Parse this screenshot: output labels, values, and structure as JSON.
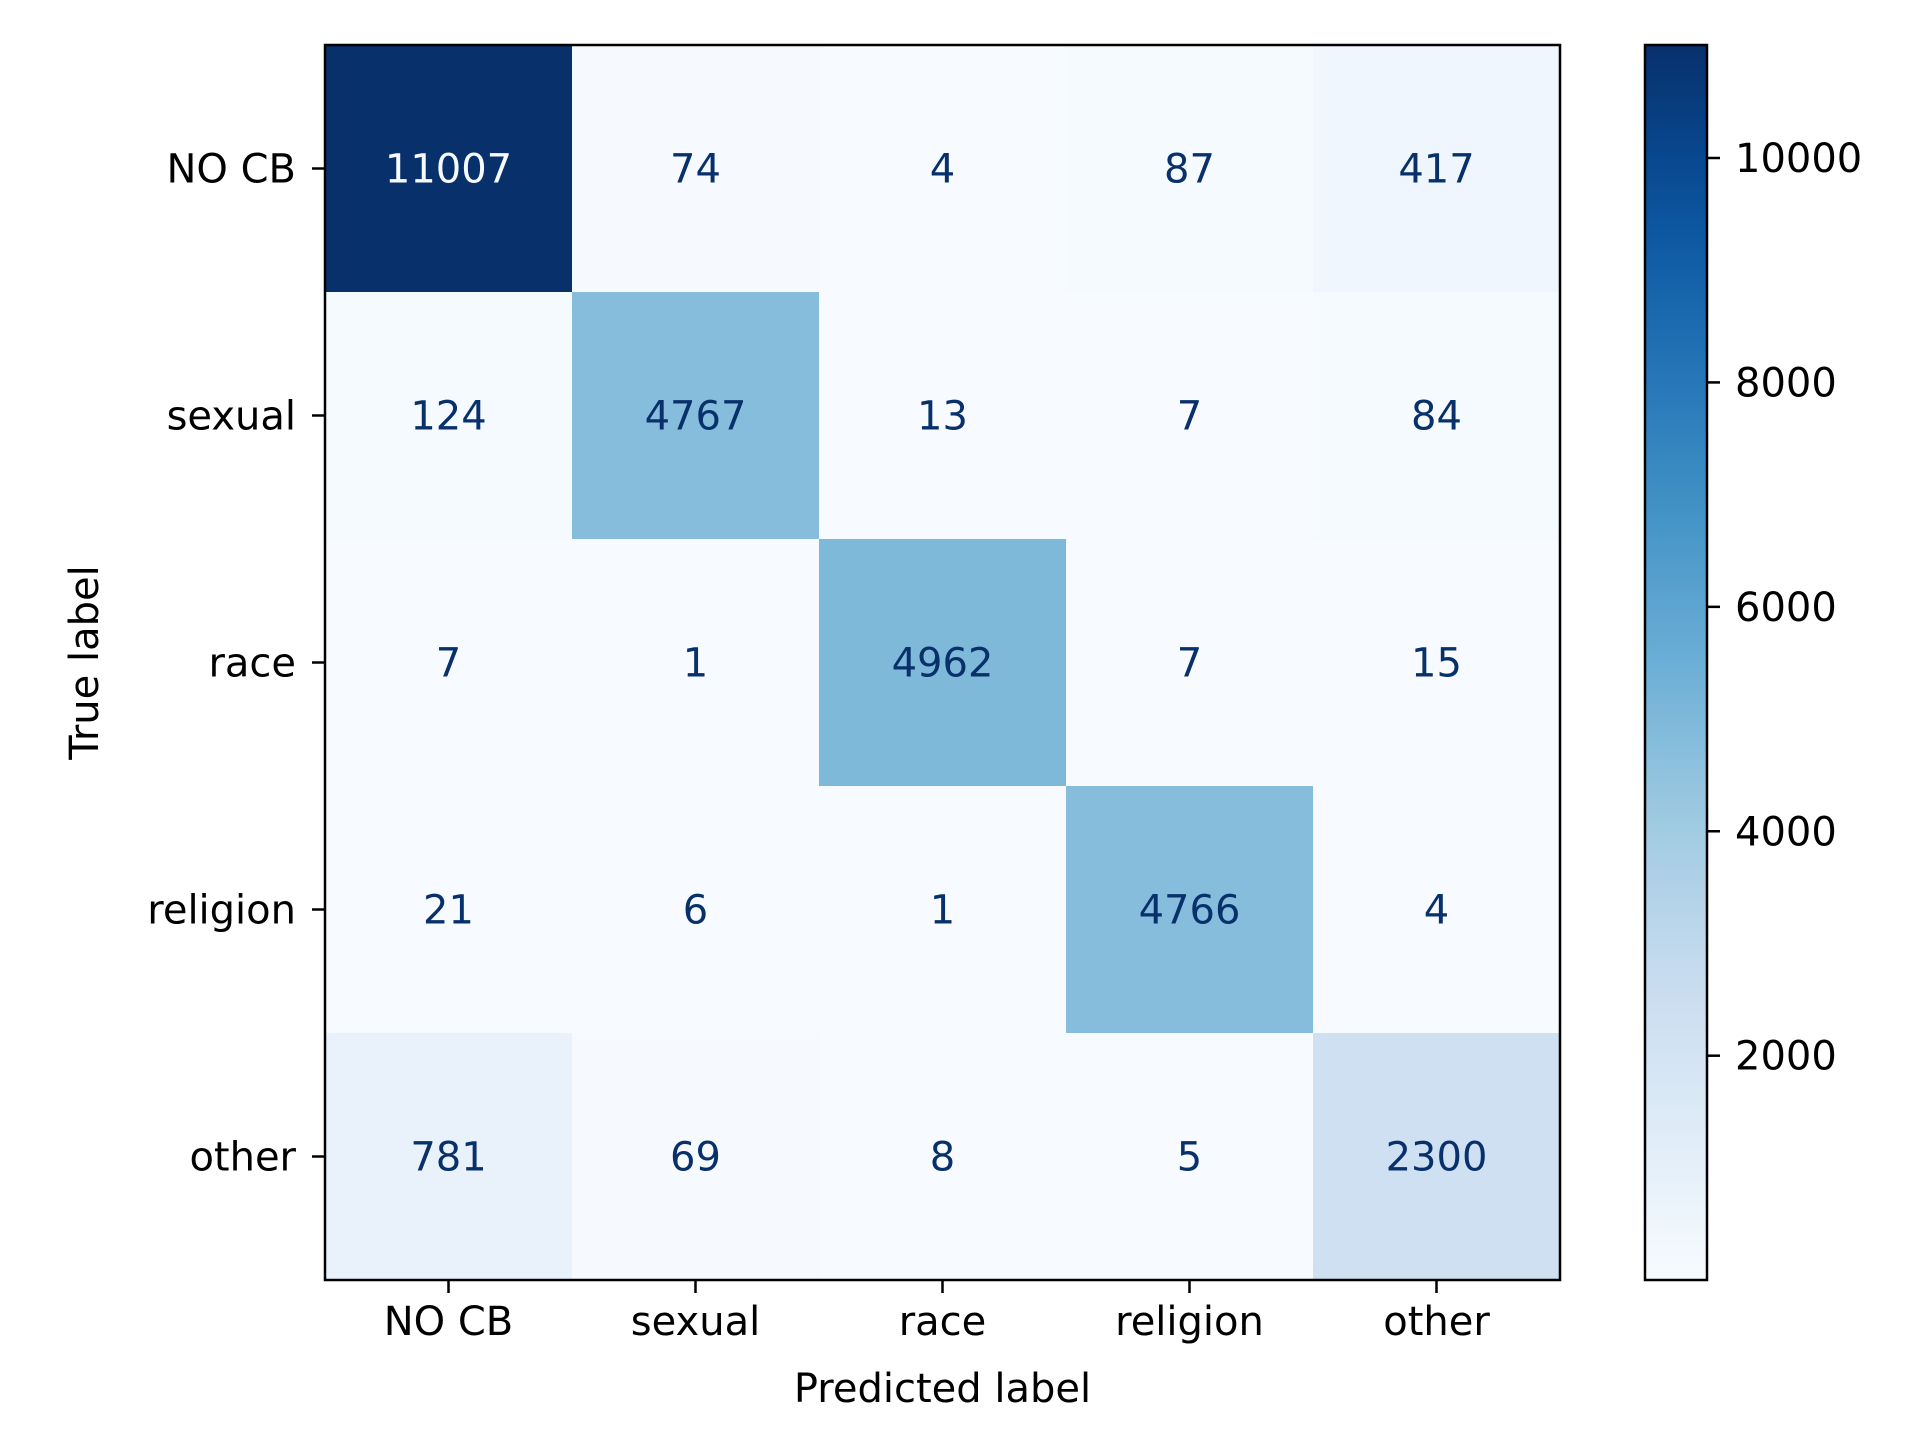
{
  "chart_data": {
    "type": "heatmap",
    "title": "",
    "xlabel": "Predicted label",
    "ylabel": "True label",
    "x_categories": [
      "NO CB",
      "sexual",
      "race",
      "religion",
      "other"
    ],
    "y_categories": [
      "NO CB",
      "sexual",
      "race",
      "religion",
      "other"
    ],
    "values": [
      [
        11007,
        74,
        4,
        87,
        417
      ],
      [
        124,
        4767,
        13,
        7,
        84
      ],
      [
        7,
        1,
        4962,
        7,
        15
      ],
      [
        21,
        6,
        1,
        4766,
        4
      ],
      [
        781,
        69,
        8,
        5,
        2300
      ]
    ],
    "colormap": "Blues",
    "colorbar": {
      "range": [
        1,
        11007
      ],
      "ticks": [
        2000,
        4000,
        6000,
        8000,
        10000
      ],
      "tick_labels": [
        "2000",
        "4000",
        "6000",
        "8000",
        "10000"
      ]
    },
    "colors": {
      "cmap_low": "#f7fbff",
      "cmap_high": "#08306b",
      "text_dark_cell": "#f7fbff",
      "text_light_cell": "#08306b",
      "axis": "#000000"
    },
    "grid": false
  }
}
